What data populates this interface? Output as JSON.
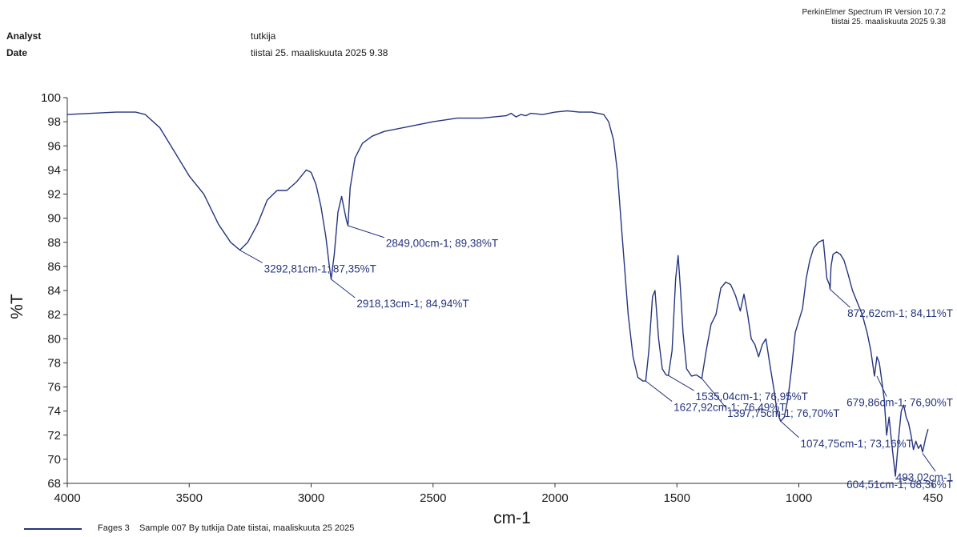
{
  "header": {
    "software": "PerkinElmer Spectrum IR Version 10.7.2",
    "software_date": "tiistai 25. maaliskuuta 2025 9.38",
    "analyst_label": "Analyst",
    "analyst_value": "tutkija",
    "date_label": "Date",
    "date_value": "tiistai 25. maaliskuuta 2025 9.38"
  },
  "colors": {
    "spectrum": "#26357f",
    "axis": "#333333"
  },
  "legend": {
    "text": "Fages 3    Sample 007 By tutkija Date tiistai, maaliskuuta 25 2025"
  },
  "chart_data": {
    "type": "line",
    "xlabel": "cm-1",
    "ylabel": "%T",
    "xlim": [
      4000,
      450
    ],
    "ylim": [
      68,
      100
    ],
    "x_reversed": true,
    "grid": false,
    "x_ticks": [
      "4000",
      "3500",
      "3000",
      "2500",
      "2000",
      "1500",
      "1000",
      "450"
    ],
    "y_ticks": [
      "100",
      "98",
      "96",
      "94",
      "92",
      "90",
      "88",
      "86",
      "84",
      "82",
      "80",
      "78",
      "76",
      "74",
      "72",
      "70",
      "68"
    ],
    "series": [
      {
        "x": [
          4000,
          3900,
          3800,
          3720,
          3680,
          3620,
          3560,
          3500,
          3440,
          3380,
          3330,
          3292,
          3260,
          3220,
          3180,
          3140,
          3100,
          3060,
          3020,
          3000,
          2980,
          2960,
          2940,
          2925,
          2918,
          2905,
          2890,
          2875,
          2862,
          2855,
          2849,
          2840,
          2820,
          2790,
          2750,
          2700,
          2600,
          2500,
          2400,
          2300,
          2250,
          2200,
          2180,
          2160,
          2140,
          2120,
          2100,
          2050,
          2000,
          1950,
          1900,
          1850,
          1800,
          1780,
          1760,
          1745,
          1730,
          1715,
          1700,
          1680,
          1660,
          1640,
          1628,
          1615,
          1600,
          1590,
          1575,
          1560,
          1545,
          1535,
          1520,
          1505,
          1495,
          1485,
          1475,
          1460,
          1440,
          1420,
          1398,
          1380,
          1360,
          1340,
          1320,
          1300,
          1280,
          1260,
          1240,
          1225,
          1210,
          1195,
          1180,
          1165,
          1150,
          1135,
          1120,
          1100,
          1090,
          1075,
          1060,
          1045,
          1030,
          1015,
          1000,
          985,
          970,
          955,
          940,
          920,
          900,
          885,
          875,
          872,
          868,
          860,
          845,
          830,
          815,
          800,
          780,
          760,
          740,
          720,
          705,
          690,
          680,
          670,
          660,
          650,
          640,
          630,
          620,
          612,
          604,
          598,
          590,
          580,
          570,
          560,
          550,
          540,
          530,
          520,
          510,
          500,
          493,
          488,
          480,
          470
        ],
        "y": [
          98.6,
          98.7,
          98.8,
          98.8,
          98.6,
          97.5,
          95.5,
          93.5,
          92.0,
          89.5,
          88.0,
          87.35,
          88.0,
          89.5,
          91.5,
          92.3,
          92.3,
          93.0,
          94.0,
          93.8,
          92.8,
          91.0,
          88.5,
          86.0,
          84.94,
          87.0,
          90.5,
          91.8,
          90.5,
          89.8,
          89.38,
          92.5,
          95.0,
          96.2,
          96.8,
          97.2,
          97.6,
          98.0,
          98.3,
          98.3,
          98.4,
          98.5,
          98.7,
          98.4,
          98.6,
          98.5,
          98.7,
          98.6,
          98.8,
          98.9,
          98.8,
          98.8,
          98.6,
          98.0,
          96.5,
          94.0,
          90.0,
          86.0,
          82.0,
          78.5,
          76.8,
          76.5,
          76.49,
          79.0,
          83.5,
          84.0,
          80.0,
          77.5,
          77.0,
          76.95,
          79.0,
          85.0,
          86.9,
          84.0,
          80.5,
          77.5,
          76.9,
          77.0,
          76.7,
          79.0,
          81.2,
          82.0,
          84.2,
          84.7,
          84.5,
          83.6,
          82.3,
          83.7,
          82.0,
          80.0,
          79.5,
          78.5,
          79.5,
          80.0,
          78.0,
          75.5,
          74.0,
          73.16,
          73.5,
          75.0,
          77.5,
          80.5,
          81.5,
          82.5,
          85.0,
          86.5,
          87.5,
          88.0,
          88.2,
          85.0,
          84.5,
          84.11,
          86.0,
          87.0,
          87.2,
          87.0,
          86.5,
          85.5,
          84.0,
          83.0,
          82.0,
          80.5,
          79.0,
          76.9,
          78.5,
          78.0,
          76.5,
          75.0,
          72.0,
          73.5,
          71.5,
          70.0,
          68.6,
          70.0,
          72.0,
          74.0,
          74.5,
          73.5,
          73.0,
          72.0,
          70.8,
          71.5,
          70.9,
          71.2,
          70.6,
          71.0,
          71.8,
          72.5
        ]
      }
    ],
    "annotations": [
      {
        "text": "3292,81cm-1; 87,35%T",
        "x": 3292.81,
        "y": 87.35,
        "lx": 3200,
        "ly": 86.3
      },
      {
        "text": "2918,13cm-1; 84,94%T",
        "x": 2918.13,
        "y": 84.94,
        "lx": 2820,
        "ly": 83.4
      },
      {
        "text": "2849,00cm-1; 89,38%T",
        "x": 2849.0,
        "y": 89.38,
        "lx": 2700,
        "ly": 88.4
      },
      {
        "text": "1627,92cm-1; 76,49%T",
        "x": 1627.92,
        "y": 76.49,
        "lx": 1520,
        "ly": 74.8
      },
      {
        "text": "1535,04cm-1; 76,95%T",
        "x": 1535.04,
        "y": 76.95,
        "lx": 1430,
        "ly": 75.7
      },
      {
        "text": "1397,75cm-1; 76,70%T",
        "x": 1397.75,
        "y": 76.7,
        "lx": 1300,
        "ly": 74.3
      },
      {
        "text": "1074,75cm-1; 73,16%T",
        "x": 1074.75,
        "y": 73.16,
        "lx": 1000,
        "ly": 71.8
      },
      {
        "text": "872,62cm-1; 84,11%T",
        "x": 872.62,
        "y": 84.11,
        "lx": 790,
        "ly": 82.6
      },
      {
        "text": "679,86cm-1; 76,90%T",
        "x": 679.86,
        "y": 76.9,
        "lx": 640,
        "ly": 75.2
      },
      {
        "text": "604,51cm-1; 68,36%T",
        "x": 604.51,
        "y": 68.36,
        "lx": 540,
        "ly": 68.4
      },
      {
        "text": "493,02cm-1",
        "x": 493.02,
        "y": 70.5,
        "lx": 440,
        "ly": 69.0
      }
    ]
  }
}
